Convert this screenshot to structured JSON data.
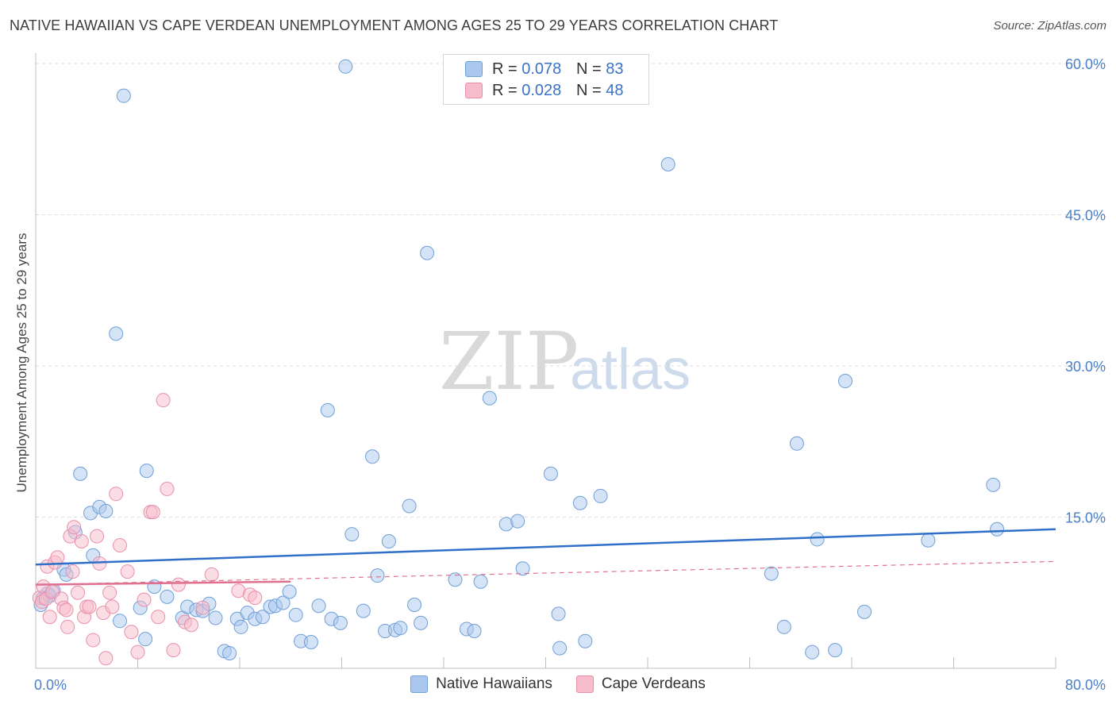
{
  "title": "NATIVE HAWAIIAN VS CAPE VERDEAN UNEMPLOYMENT AMONG AGES 25 TO 29 YEARS CORRELATION CHART",
  "source": "Source: ZipAtlas.com",
  "watermark": {
    "zip": "ZIP",
    "atlas": "atlas"
  },
  "colors": {
    "blue_fill": "#aac8ee",
    "blue_stroke": "#6f9fd8",
    "blue_line": "#2f6fc9",
    "pink_fill": "#f7bccc",
    "pink_stroke": "#e890aa",
    "pink_line": "#e0708f",
    "grid": "#dcdcdc",
    "tick_text": "#4a7fc8"
  },
  "legend": {
    "rows": [
      {
        "r_label": "R =",
        "r_value": "0.078",
        "n_label": "N =",
        "n_value": "83"
      },
      {
        "r_label": "R =",
        "r_value": "0.028",
        "n_label": "N =",
        "n_value": "48"
      }
    ]
  },
  "chart_data": {
    "type": "scatter",
    "title": "NATIVE HAWAIIAN VS CAPE VERDEAN UNEMPLOYMENT AMONG AGES 25 TO 29 YEARS CORRELATION CHART",
    "xlabel": "",
    "ylabel": "Unemployment Among Ages 25 to 29 years",
    "xlim": [
      0,
      80
    ],
    "ylim": [
      0,
      60
    ],
    "x_tick_labels": [
      "0.0%",
      "80.0%"
    ],
    "y_ticks": [
      15,
      30,
      45,
      60
    ],
    "y_tick_labels": [
      "15.0%",
      "30.0%",
      "45.0%",
      "60.0%"
    ],
    "grid": true,
    "series": [
      {
        "name": "Native Hawaiians",
        "color": "#aac8ee",
        "points": [
          [
            0.4,
            6.3
          ],
          [
            0.6,
            7.0
          ],
          [
            0.9,
            7.4
          ],
          [
            1.1,
            7.2
          ],
          [
            1.4,
            7.7
          ],
          [
            2.2,
            9.8
          ],
          [
            2.4,
            9.3
          ],
          [
            3.1,
            13.5
          ],
          [
            3.5,
            19.3
          ],
          [
            4.3,
            15.4
          ],
          [
            4.5,
            11.2
          ],
          [
            5.0,
            16.0
          ],
          [
            5.5,
            15.6
          ],
          [
            6.3,
            33.2
          ],
          [
            6.6,
            4.7
          ],
          [
            6.9,
            56.8
          ],
          [
            8.2,
            6.0
          ],
          [
            8.6,
            2.9
          ],
          [
            8.7,
            19.6
          ],
          [
            9.3,
            8.1
          ],
          [
            10.3,
            7.1
          ],
          [
            11.5,
            5.0
          ],
          [
            11.9,
            6.1
          ],
          [
            12.6,
            5.8
          ],
          [
            13.1,
            5.7
          ],
          [
            13.6,
            6.4
          ],
          [
            14.1,
            5.0
          ],
          [
            14.8,
            1.7
          ],
          [
            15.2,
            1.5
          ],
          [
            15.8,
            4.9
          ],
          [
            16.1,
            4.1
          ],
          [
            16.6,
            5.5
          ],
          [
            17.2,
            4.9
          ],
          [
            17.8,
            5.1
          ],
          [
            18.4,
            6.1
          ],
          [
            18.8,
            6.2
          ],
          [
            19.4,
            6.5
          ],
          [
            19.9,
            7.6
          ],
          [
            20.4,
            5.3
          ],
          [
            20.8,
            2.7
          ],
          [
            21.6,
            2.6
          ],
          [
            22.2,
            6.2
          ],
          [
            22.9,
            25.6
          ],
          [
            23.2,
            4.9
          ],
          [
            23.9,
            4.5
          ],
          [
            24.3,
            59.7
          ],
          [
            24.8,
            13.3
          ],
          [
            25.7,
            5.7
          ],
          [
            26.4,
            21.0
          ],
          [
            26.8,
            9.2
          ],
          [
            27.4,
            3.7
          ],
          [
            27.7,
            12.6
          ],
          [
            28.2,
            3.8
          ],
          [
            28.6,
            4.0
          ],
          [
            29.3,
            16.1
          ],
          [
            29.7,
            6.3
          ],
          [
            30.2,
            4.5
          ],
          [
            30.7,
            41.2
          ],
          [
            32.9,
            8.8
          ],
          [
            33.8,
            3.9
          ],
          [
            34.4,
            3.7
          ],
          [
            34.9,
            8.6
          ],
          [
            35.6,
            26.8
          ],
          [
            36.9,
            14.3
          ],
          [
            37.8,
            14.6
          ],
          [
            38.2,
            9.9
          ],
          [
            40.4,
            19.3
          ],
          [
            41.0,
            5.4
          ],
          [
            41.1,
            2.0
          ],
          [
            42.7,
            16.4
          ],
          [
            43.1,
            2.7
          ],
          [
            44.3,
            17.1
          ],
          [
            49.6,
            50.0
          ],
          [
            57.7,
            9.4
          ],
          [
            58.7,
            4.1
          ],
          [
            59.7,
            22.3
          ],
          [
            60.9,
            1.6
          ],
          [
            61.3,
            12.8
          ],
          [
            62.7,
            1.8
          ],
          [
            63.5,
            28.5
          ],
          [
            65.0,
            5.6
          ],
          [
            70.0,
            12.7
          ],
          [
            75.1,
            18.2
          ],
          [
            75.4,
            13.8
          ]
        ],
        "trend": {
          "x": [
            0,
            80
          ],
          "y": [
            10.3,
            13.8
          ]
        }
      },
      {
        "name": "Cape Verdeans",
        "color": "#f7bccc",
        "points": [
          [
            0.3,
            7.0
          ],
          [
            0.5,
            6.6
          ],
          [
            0.6,
            8.1
          ],
          [
            0.8,
            6.9
          ],
          [
            0.9,
            10.1
          ],
          [
            1.1,
            5.1
          ],
          [
            1.3,
            7.6
          ],
          [
            1.5,
            10.5
          ],
          [
            1.7,
            11.0
          ],
          [
            2.0,
            6.9
          ],
          [
            2.2,
            6.0
          ],
          [
            2.4,
            5.8
          ],
          [
            2.5,
            4.1
          ],
          [
            2.7,
            13.1
          ],
          [
            2.9,
            9.6
          ],
          [
            3.0,
            14.0
          ],
          [
            3.3,
            7.5
          ],
          [
            3.6,
            12.6
          ],
          [
            3.8,
            5.1
          ],
          [
            4.0,
            6.1
          ],
          [
            4.2,
            6.1
          ],
          [
            4.5,
            2.8
          ],
          [
            4.8,
            13.1
          ],
          [
            5.0,
            10.4
          ],
          [
            5.3,
            5.5
          ],
          [
            5.5,
            1.0
          ],
          [
            5.8,
            7.5
          ],
          [
            6.0,
            6.1
          ],
          [
            6.3,
            17.3
          ],
          [
            6.6,
            12.2
          ],
          [
            7.2,
            9.6
          ],
          [
            7.5,
            3.6
          ],
          [
            8.0,
            1.6
          ],
          [
            8.5,
            6.8
          ],
          [
            9.0,
            15.5
          ],
          [
            9.2,
            15.5
          ],
          [
            9.6,
            5.1
          ],
          [
            10.0,
            26.6
          ],
          [
            10.3,
            17.8
          ],
          [
            10.8,
            1.8
          ],
          [
            11.2,
            8.3
          ],
          [
            11.7,
            4.6
          ],
          [
            12.2,
            4.3
          ],
          [
            13.1,
            6.0
          ],
          [
            13.8,
            9.3
          ],
          [
            15.9,
            7.7
          ],
          [
            16.8,
            7.3
          ],
          [
            17.2,
            7.0
          ]
        ],
        "trend": {
          "x": [
            0,
            20
          ],
          "y": [
            8.3,
            8.6
          ]
        },
        "trend_extended": {
          "x": [
            0,
            80
          ],
          "y": [
            8.3,
            10.6
          ]
        }
      }
    ]
  },
  "bottom_legend": [
    {
      "label": "Native Hawaiians"
    },
    {
      "label": "Cape Verdeans"
    }
  ]
}
